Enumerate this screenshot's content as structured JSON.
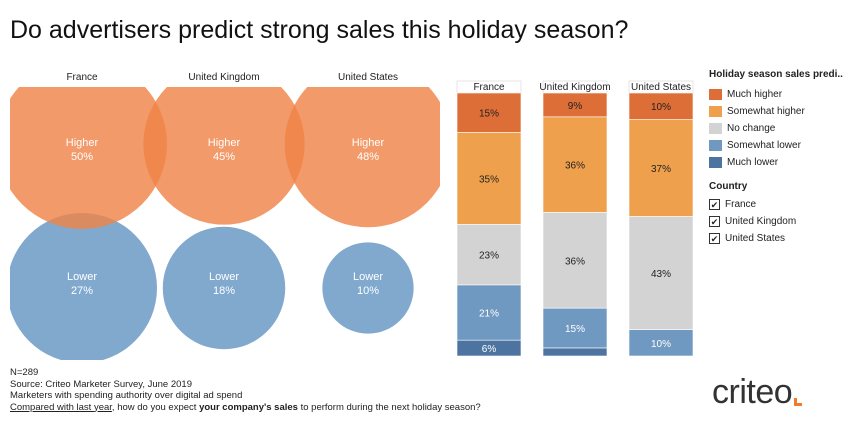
{
  "title": "Do advertisers predict strong sales this holiday season?",
  "colors": {
    "much_higher": "#dd6e37",
    "somewhat_higher": "#efa04c",
    "no_change": "#d3d3d3",
    "somewhat_lower": "#7099c1",
    "much_lower": "#4d74a0",
    "higher_circle": "#ef8448",
    "lower_circle": "#6b9ac6"
  },
  "chart_data": [
    {
      "type": "venn",
      "categories": [
        "France",
        "United Kingdom",
        "United States"
      ],
      "series": [
        {
          "name": "Higher",
          "labels": [
            "50%",
            "45%",
            "48%"
          ],
          "values": [
            50,
            45,
            48
          ]
        },
        {
          "name": "Lower",
          "labels": [
            "27%",
            "18%",
            "10%"
          ],
          "values": [
            27,
            18,
            10
          ]
        }
      ]
    },
    {
      "type": "bar",
      "stacked": true,
      "categories": [
        "France",
        "United Kingdom",
        "United States"
      ],
      "series": [
        {
          "name": "Much higher",
          "values": [
            15,
            9,
            10
          ],
          "labels": [
            "15%",
            "9%",
            "10%"
          ]
        },
        {
          "name": "Somewhat higher",
          "values": [
            35,
            36,
            37
          ],
          "labels": [
            "35%",
            "36%",
            "37%"
          ]
        },
        {
          "name": "No change",
          "values": [
            23,
            36,
            43
          ],
          "labels": [
            "23%",
            "36%",
            "43%"
          ]
        },
        {
          "name": "Somewhat lower",
          "values": [
            21,
            15,
            10
          ],
          "labels": [
            "21%",
            "15%",
            "10%"
          ]
        },
        {
          "name": "Much lower",
          "values": [
            6,
            3,
            0
          ],
          "labels": [
            "6%",
            "",
            ""
          ]
        }
      ],
      "legend_placement": "right"
    }
  ],
  "legend": {
    "title": "Holiday season sales predi..",
    "items": [
      "Much higher",
      "Somewhat higher",
      "No change",
      "Somewhat lower",
      "Much lower"
    ],
    "country_title": "Country",
    "countries": [
      "France",
      "United Kingdom",
      "United States"
    ],
    "check": "✔"
  },
  "notes": {
    "n": "N=289",
    "source": "Source: Criteo Marketer Survey, June 2019",
    "sample": "Marketers with spending authority over digital ad spend",
    "q_underlined": "Compared with last year",
    "q_part1": ", how do you expect ",
    "q_bold": "your company's sales",
    "q_part2": " to perform during the next holiday season?"
  },
  "logo": {
    "text": "criteo"
  }
}
